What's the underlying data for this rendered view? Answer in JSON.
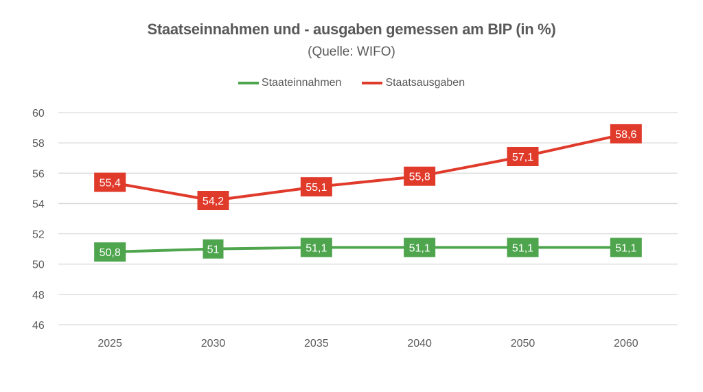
{
  "chart_data": {
    "type": "line",
    "title": "Staatseinnahmen und - ausgaben gemessen am BIP (in %)",
    "subtitle": "(Quelle: WIFO)",
    "xlabel": "",
    "ylabel": "",
    "categories": [
      "2025",
      "2030",
      "2035",
      "2040",
      "2050",
      "2060"
    ],
    "ylim": [
      46,
      60
    ],
    "yticks": [
      46,
      48,
      50,
      52,
      54,
      56,
      58,
      60
    ],
    "grid": true,
    "legend_position": "top-center",
    "series": [
      {
        "name": "Staateinnahmen",
        "color": "#4ea54e",
        "values": [
          50.8,
          51,
          51.1,
          51.1,
          51.1,
          51.1
        ],
        "labels": [
          "50,8",
          "51",
          "51,1",
          "51,1",
          "51,1",
          "51,1"
        ]
      },
      {
        "name": "Staatsausgaben",
        "color": "#e03a2b",
        "values": [
          55.4,
          54.2,
          55.1,
          55.8,
          57.1,
          58.6
        ],
        "labels": [
          "55,4",
          "54,2",
          "55,1",
          "55,8",
          "57,1",
          "58,6"
        ]
      }
    ]
  }
}
